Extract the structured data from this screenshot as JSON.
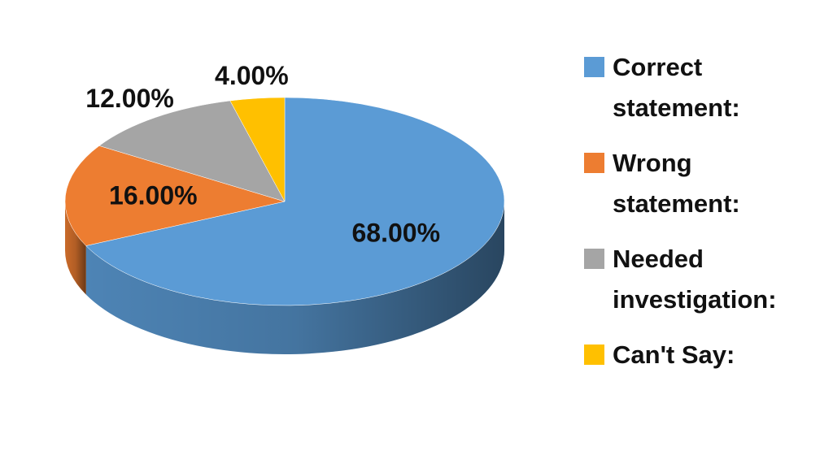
{
  "chart_data": {
    "type": "pie",
    "categories": [
      "Correct statement:",
      "Wrong statement:",
      "Needed investigation:",
      "Can't Say:"
    ],
    "values": [
      68,
      16,
      12,
      4
    ],
    "value_labels": [
      "68.00%",
      "16.00%",
      "12.00%",
      "4.00%"
    ],
    "colors": [
      "#5b9bd5",
      "#ed7d31",
      "#a5a5a5",
      "#ffc000"
    ],
    "legend": "right"
  }
}
